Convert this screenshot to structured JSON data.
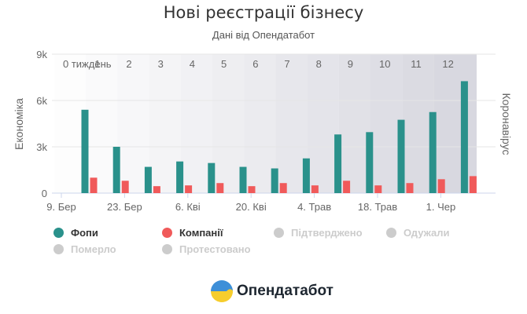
{
  "colors": {
    "fopy": "#2a918b",
    "companies": "#f05a5a",
    "inactive": "#cccccc",
    "phase": "#d8d8e0"
  },
  "chart_data": {
    "type": "bar",
    "title": "Нові реєстрації бізнесу",
    "subtitle": "Дані від Опендатабот",
    "ylabel_left": "Економіка",
    "ylabel_right": "Коронавірус",
    "ylim": [
      0,
      9000
    ],
    "y_ticks": [
      {
        "value": 0,
        "label": "0"
      },
      {
        "value": 3000,
        "label": "3k"
      },
      {
        "value": 6000,
        "label": "6k"
      },
      {
        "value": 9000,
        "label": "9k"
      }
    ],
    "x_tick_labels": [
      "9. Бер",
      "23. Бер",
      "6. Кві",
      "20. Кві",
      "4. Трав",
      "18. Трав",
      "1. Чер"
    ],
    "week_labels": [
      "0 тиждень",
      "1",
      "2",
      "3",
      "4",
      "5",
      "6",
      "7",
      "8",
      "9",
      "10",
      "11",
      "12"
    ],
    "grid": true,
    "legend_position": "bottom",
    "series": [
      {
        "name": "Фопи",
        "color": "#2a918b",
        "values": [
          5400,
          3000,
          1700,
          2050,
          1950,
          1700,
          1600,
          2250,
          3800,
          3950,
          4750,
          5250,
          7250
        ]
      },
      {
        "name": "Компанії",
        "color": "#f05a5a",
        "values": [
          1000,
          800,
          450,
          500,
          650,
          450,
          650,
          500,
          800,
          500,
          650,
          900,
          1100
        ]
      }
    ]
  },
  "legend": [
    {
      "label": "Фопи",
      "color": "#2a918b",
      "active": true
    },
    {
      "label": "Компанії",
      "color": "#f05a5a",
      "active": true
    },
    {
      "label": "Підтверджено",
      "color": "#cccccc",
      "active": false
    },
    {
      "label": "Одужали",
      "color": "#cccccc",
      "active": false
    },
    {
      "label": "Померло",
      "color": "#cccccc",
      "active": false
    },
    {
      "label": "Протестовано",
      "color": "#cccccc",
      "active": false
    }
  ],
  "brand": {
    "name": "Опендатабот",
    "logo_icon": "opendatabot-logo-icon"
  }
}
